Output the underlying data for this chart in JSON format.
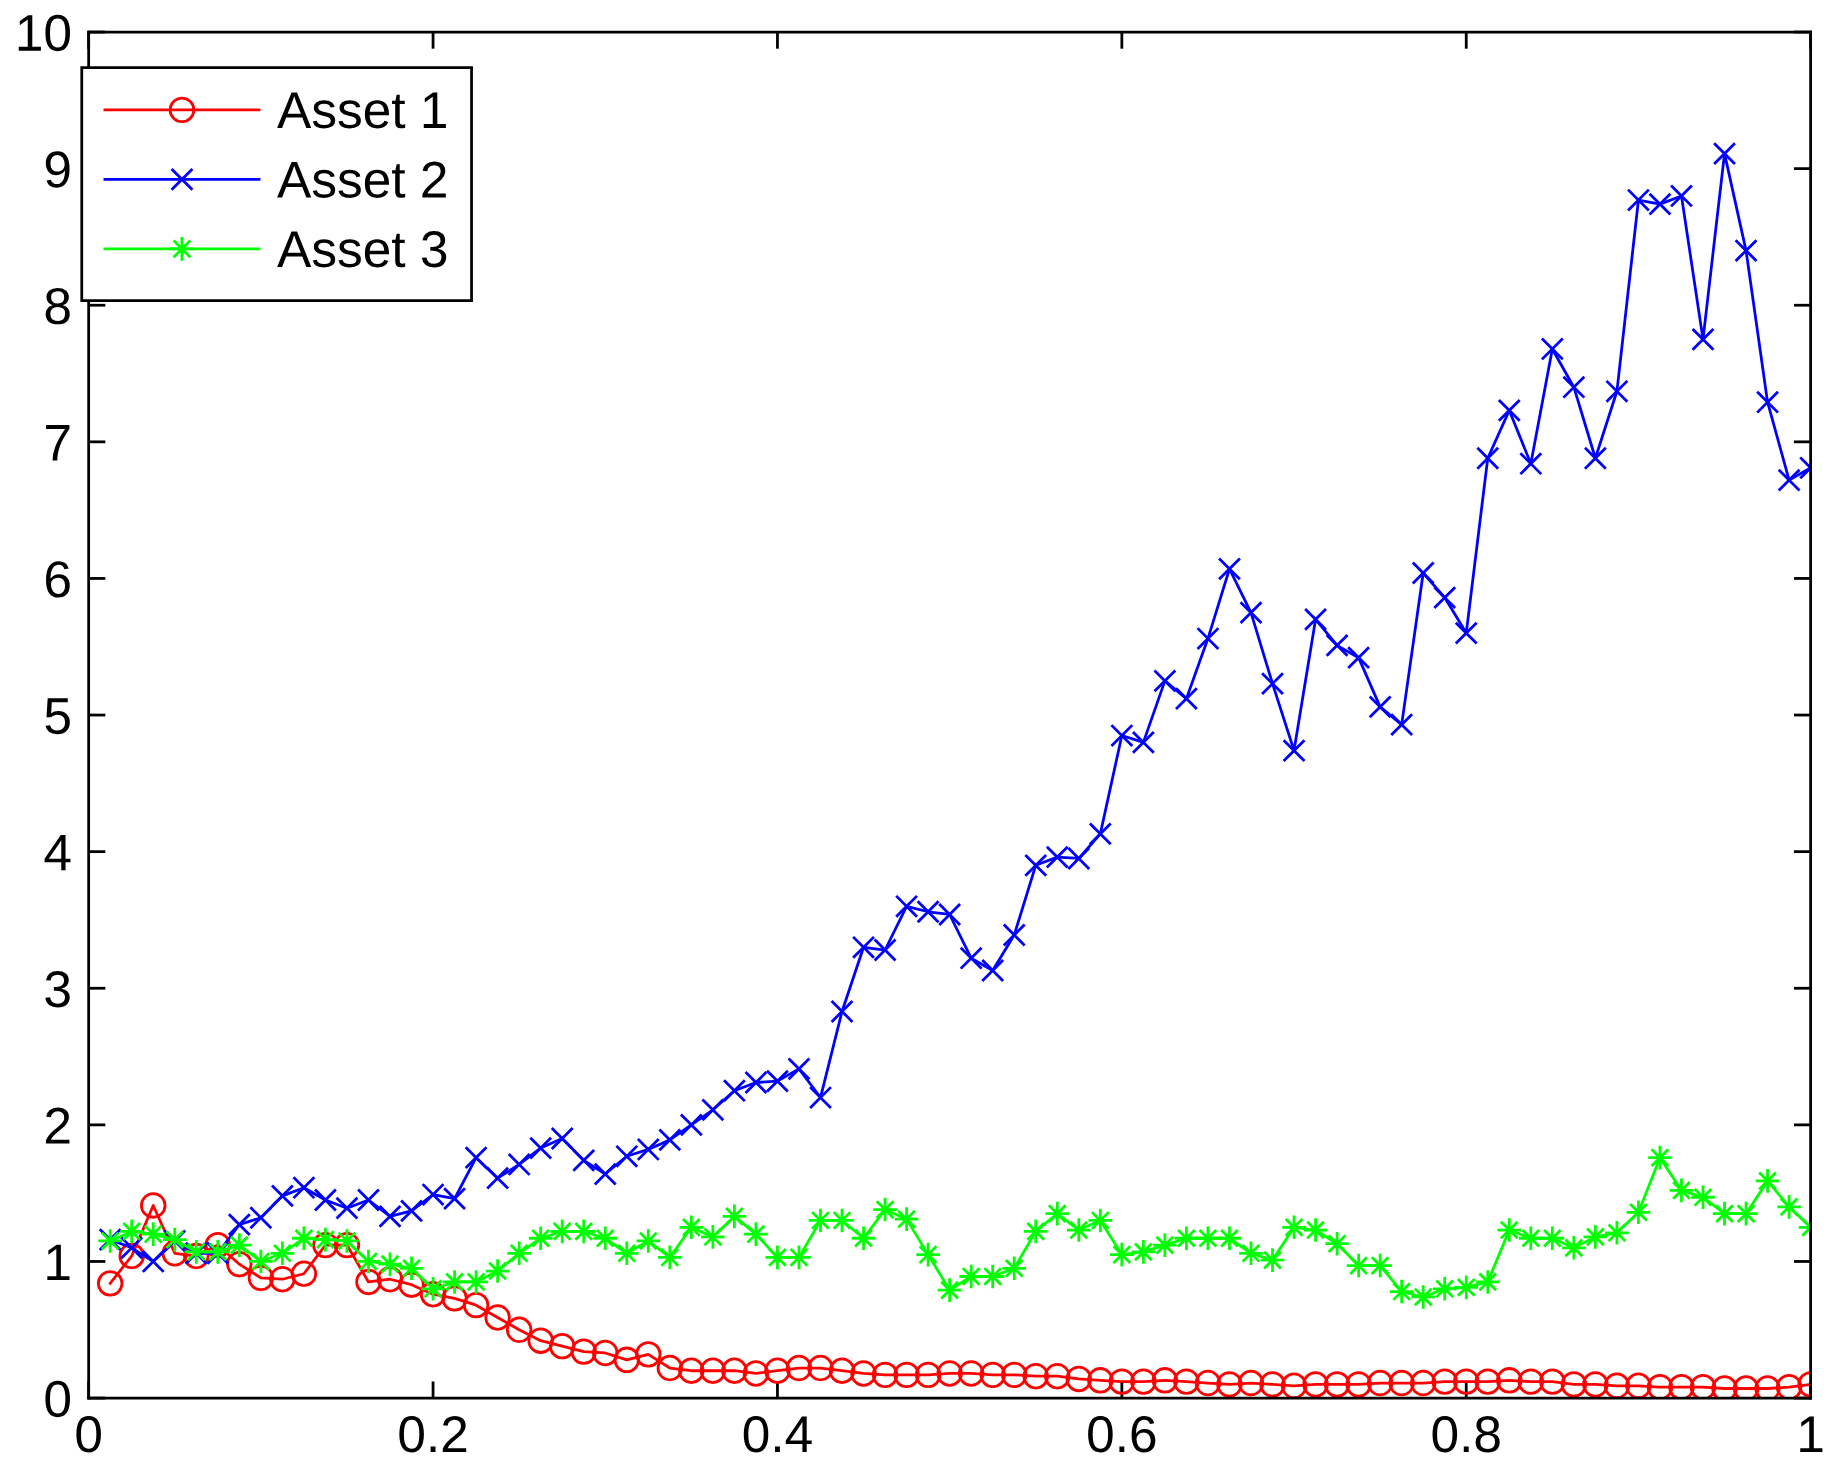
{
  "chart_data": {
    "type": "line",
    "x": [
      0.0125,
      0.025,
      0.0375,
      0.05,
      0.0625,
      0.075,
      0.0875,
      0.1,
      0.1125,
      0.125,
      0.1375,
      0.15,
      0.1625,
      0.175,
      0.1875,
      0.2,
      0.2125,
      0.225,
      0.2375,
      0.25,
      0.2625,
      0.275,
      0.2875,
      0.3,
      0.3125,
      0.325,
      0.3375,
      0.35,
      0.3625,
      0.375,
      0.3875,
      0.4,
      0.4125,
      0.425,
      0.4375,
      0.45,
      0.4625,
      0.475,
      0.4875,
      0.5,
      0.5125,
      0.525,
      0.5375,
      0.55,
      0.5625,
      0.575,
      0.5875,
      0.6,
      0.6125,
      0.625,
      0.6375,
      0.65,
      0.6625,
      0.675,
      0.6875,
      0.7,
      0.7125,
      0.725,
      0.7375,
      0.75,
      0.7625,
      0.775,
      0.7875,
      0.8,
      0.8125,
      0.825,
      0.8375,
      0.85,
      0.8625,
      0.875,
      0.8875,
      0.9,
      0.9125,
      0.925,
      0.9375,
      0.95,
      0.9625,
      0.975,
      0.9875,
      1
    ],
    "xlim": [
      0,
      1
    ],
    "ylim": [
      0,
      10
    ],
    "xticks": [
      0,
      0.2,
      0.4,
      0.6,
      0.8,
      1
    ],
    "yticks": [
      0,
      1,
      2,
      3,
      4,
      5,
      6,
      7,
      8,
      9,
      10
    ],
    "legend": "top left",
    "line_style": "solid",
    "series": [
      {
        "name": "Asset 1",
        "color": "#ff0000",
        "marker": "circle",
        "values": [
          0.84,
          1.04,
          1.41,
          1.06,
          1.04,
          1.12,
          0.98,
          0.88,
          0.87,
          0.91,
          1.12,
          1.12,
          0.85,
          0.87,
          0.83,
          0.76,
          0.73,
          0.68,
          0.59,
          0.5,
          0.42,
          0.38,
          0.34,
          0.33,
          0.28,
          0.32,
          0.22,
          0.2,
          0.2,
          0.2,
          0.18,
          0.2,
          0.22,
          0.22,
          0.2,
          0.18,
          0.17,
          0.17,
          0.17,
          0.18,
          0.18,
          0.17,
          0.17,
          0.16,
          0.16,
          0.14,
          0.13,
          0.12,
          0.12,
          0.13,
          0.12,
          0.11,
          0.1,
          0.11,
          0.1,
          0.09,
          0.1,
          0.1,
          0.1,
          0.11,
          0.11,
          0.11,
          0.12,
          0.12,
          0.12,
          0.13,
          0.12,
          0.12,
          0.1,
          0.1,
          0.09,
          0.09,
          0.08,
          0.08,
          0.08,
          0.07,
          0.07,
          0.07,
          0.08,
          0.1
        ]
      },
      {
        "name": "Asset 2",
        "color": "#0000ff",
        "marker": "cross",
        "values": [
          1.16,
          1.1,
          1.0,
          1.15,
          1.06,
          1.06,
          1.27,
          1.32,
          1.48,
          1.54,
          1.45,
          1.39,
          1.45,
          1.33,
          1.37,
          1.49,
          1.46,
          1.76,
          1.61,
          1.71,
          1.83,
          1.9,
          1.74,
          1.64,
          1.77,
          1.82,
          1.89,
          2.0,
          2.11,
          2.25,
          2.31,
          2.32,
          2.41,
          2.2,
          2.83,
          3.3,
          3.28,
          3.6,
          3.56,
          3.54,
          3.22,
          3.13,
          3.39,
          3.9,
          3.96,
          3.95,
          4.13,
          4.85,
          4.8,
          5.25,
          5.12,
          5.56,
          6.07,
          5.75,
          5.23,
          4.74,
          5.7,
          5.51,
          5.42,
          5.06,
          4.93,
          6.04,
          5.86,
          5.6,
          6.88,
          7.23,
          6.84,
          7.68,
          7.4,
          6.88,
          7.37,
          8.77,
          8.74,
          8.8,
          7.75,
          9.11,
          8.4,
          7.29,
          6.72,
          6.81
        ]
      },
      {
        "name": "Asset 3",
        "color": "#00ff00",
        "marker": "star",
        "values": [
          1.15,
          1.22,
          1.2,
          1.16,
          1.07,
          1.07,
          1.12,
          1.0,
          1.06,
          1.17,
          1.16,
          1.15,
          1.0,
          0.98,
          0.95,
          0.8,
          0.85,
          0.85,
          0.93,
          1.06,
          1.17,
          1.22,
          1.22,
          1.17,
          1.06,
          1.15,
          1.03,
          1.25,
          1.18,
          1.33,
          1.2,
          1.03,
          1.03,
          1.3,
          1.3,
          1.17,
          1.38,
          1.31,
          1.05,
          0.79,
          0.89,
          0.89,
          0.95,
          1.22,
          1.35,
          1.23,
          1.3,
          1.05,
          1.07,
          1.12,
          1.17,
          1.17,
          1.17,
          1.06,
          1.01,
          1.25,
          1.23,
          1.13,
          0.97,
          0.97,
          0.78,
          0.74,
          0.8,
          0.81,
          0.85,
          1.23,
          1.17,
          1.17,
          1.1,
          1.18,
          1.21,
          1.36,
          1.76,
          1.52,
          1.47,
          1.35,
          1.35,
          1.59,
          1.4,
          1.25
        ]
      }
    ]
  }
}
